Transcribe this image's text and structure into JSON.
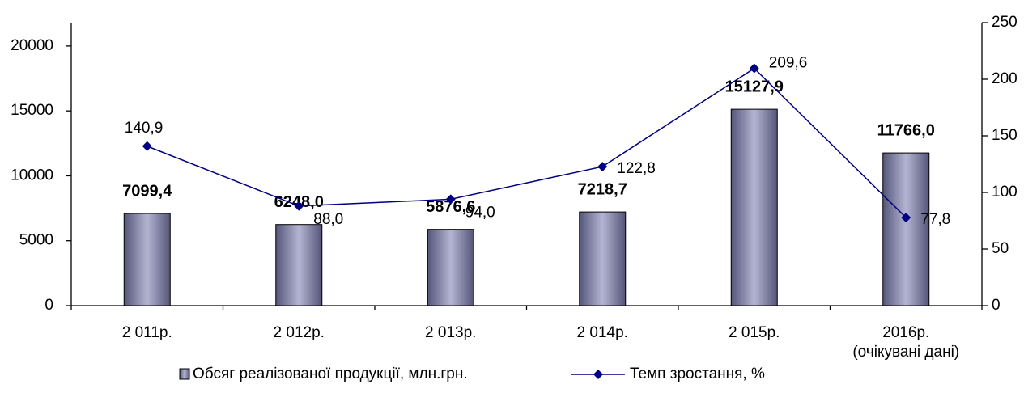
{
  "chart_data": {
    "type": "bar-line",
    "categories": [
      "2 011р.",
      "2 012р.",
      "2 013р.",
      "2 014р.",
      "2 015р.",
      "2016р.\n(очікувані дані)"
    ],
    "series": [
      {
        "name": "Обсяг реалізованої продукції, млн.грн.",
        "type": "bar",
        "color": "#9999bb",
        "values": [
          7099.4,
          6248.0,
          5876.6,
          7218.7,
          15127.9,
          11766.0
        ],
        "value_labels": [
          "7099,4",
          "6248,0",
          "5876,6",
          "7218,7",
          "15127,9",
          "11766,0"
        ]
      },
      {
        "name": "Темп зростання, %",
        "type": "line",
        "axis": "y2",
        "color": "#000080",
        "values": [
          140.9,
          88.0,
          94.0,
          122.8,
          209.6,
          77.8
        ],
        "value_labels": [
          "140,9",
          "88,0",
          "94,0",
          "122,8",
          "209,6",
          "77,8"
        ]
      }
    ],
    "ylim": [
      0,
      21800
    ],
    "yticks": [
      0,
      5000,
      10000,
      15000,
      20000
    ],
    "y2lim": [
      0,
      250
    ],
    "y2ticks": [
      0,
      50,
      100,
      150,
      200,
      250
    ],
    "legend": "bottom"
  }
}
